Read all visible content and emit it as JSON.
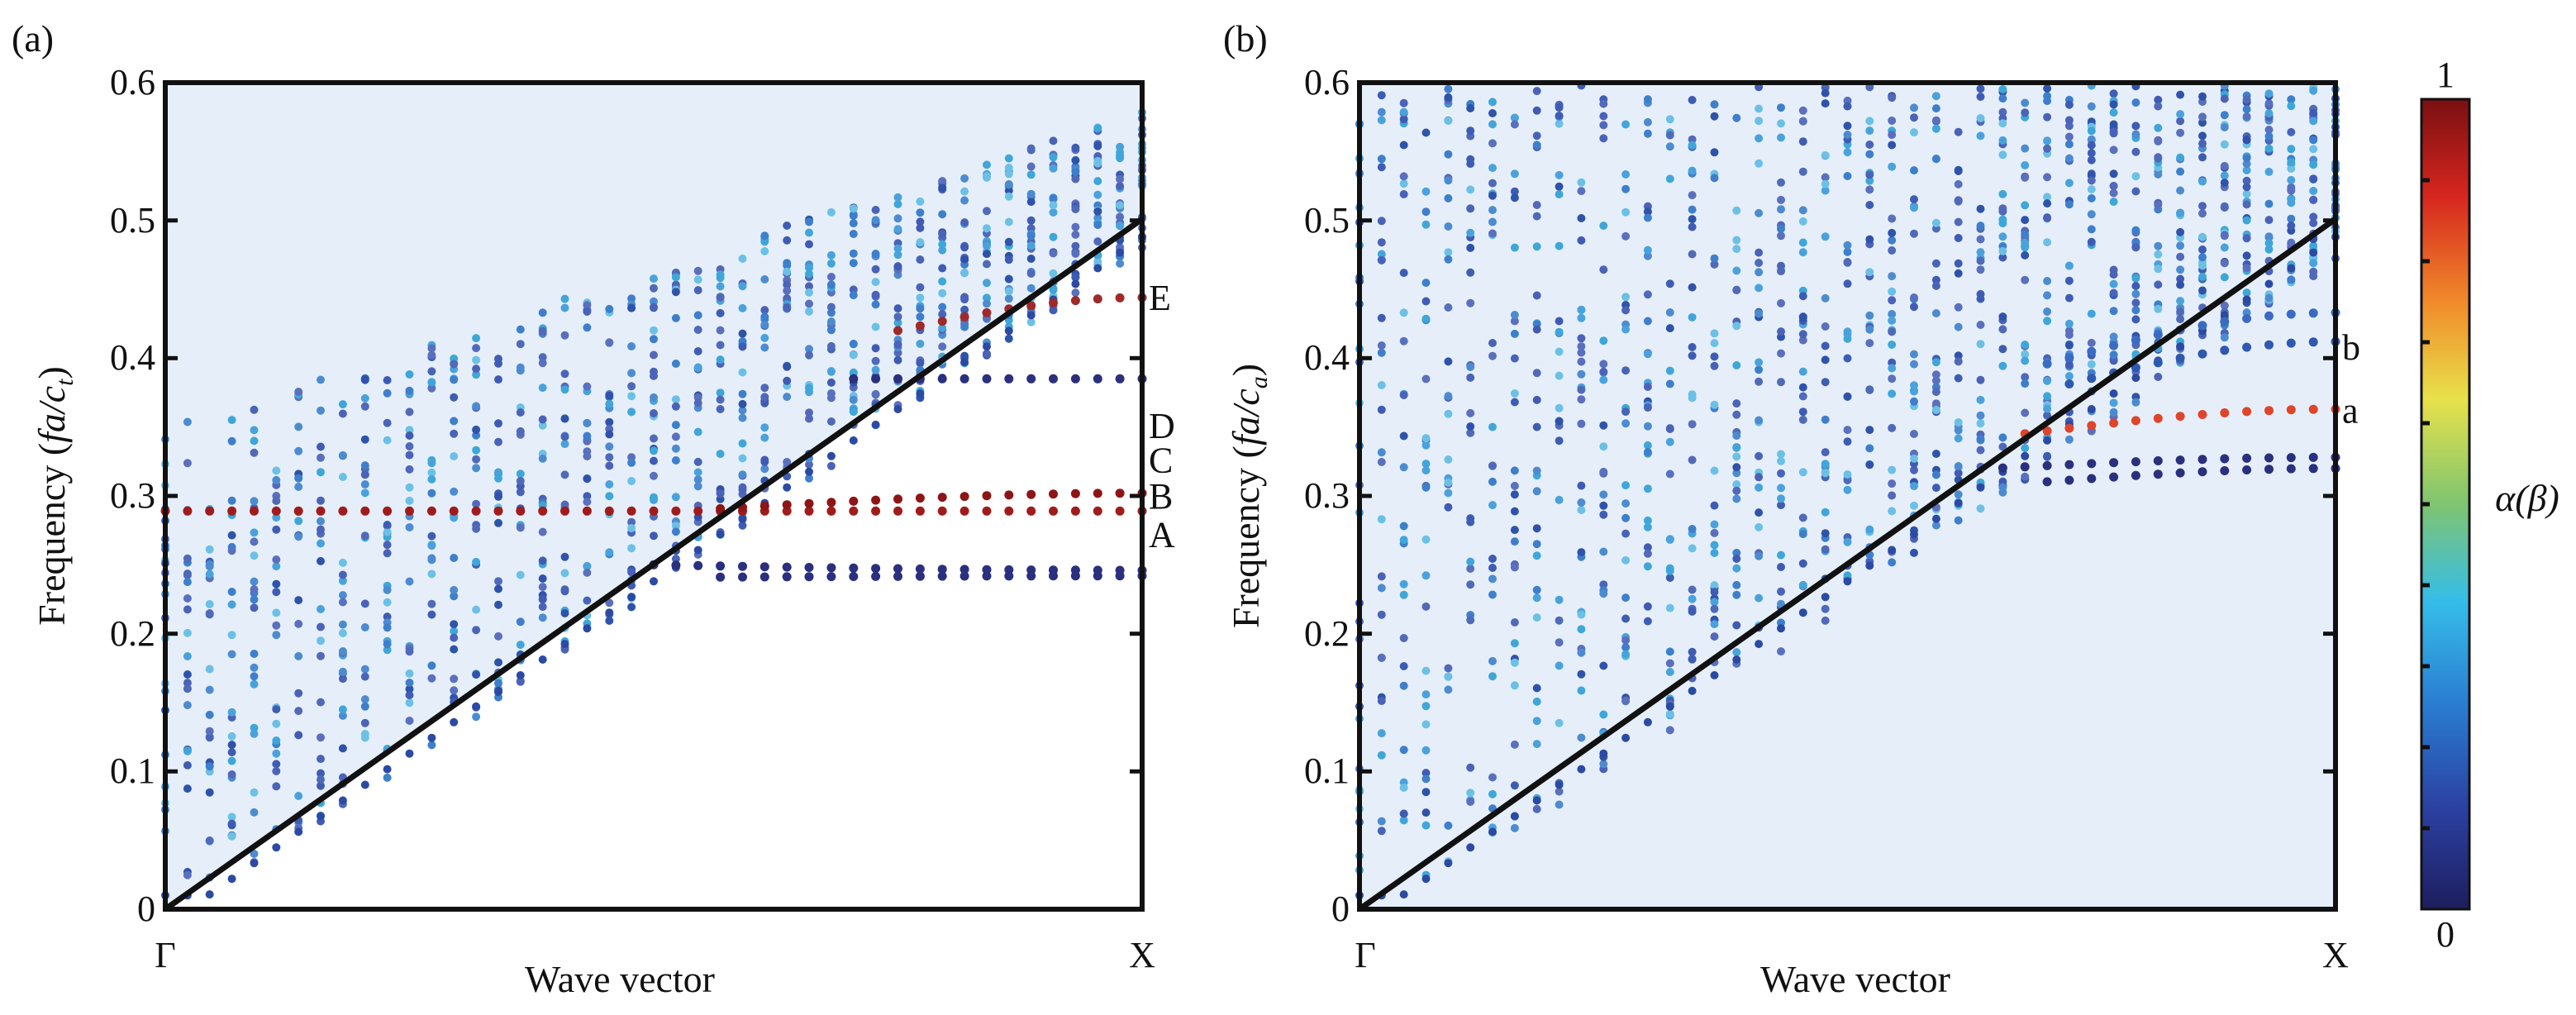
{
  "chart_data": [
    {
      "type": "scatter",
      "panel_label": "(a)",
      "xlabel": "Wave vector",
      "ylabel": {
        "prefix": "Frequency (",
        "italic": "fa/c",
        "sub": "t",
        "suffix": ")"
      },
      "ylim": [
        0,
        0.6
      ],
      "yticks": [
        "0",
        "0.1",
        "0.2",
        "0.3",
        "0.4",
        "0.5",
        "0.6"
      ],
      "xticks": [
        "Γ",
        "X"
      ],
      "light_line": {
        "from": [
          0,
          0
        ],
        "to": [
          1,
          0.5
        ]
      },
      "shaded_region": "above light line",
      "band_labels": [
        {
          "text": "E",
          "value": 0.444
        },
        {
          "text": "D",
          "value": 0.351
        },
        {
          "text": "C",
          "value": 0.326
        },
        {
          "text": "B",
          "value": 0.3
        },
        {
          "text": "A",
          "value": 0.272
        }
      ],
      "bands": [
        {
          "start": 0.289,
          "end": 0.289,
          "color": "#a01c1c",
          "xstart": 0.0
        },
        {
          "start": 0.29,
          "end": 0.302,
          "color": "#8e1515",
          "xstart": 0.55
        },
        {
          "start": 0.25,
          "end": 0.246,
          "color": "#2a2f7e",
          "xstart": 0.5
        },
        {
          "start": 0.241,
          "end": 0.242,
          "color": "#2a2f7e",
          "xstart": 0.55
        },
        {
          "start": 0.385,
          "end": 0.385,
          "color": "#2a2f7e",
          "xstart": 0.7
        },
        {
          "start": 0.42,
          "end": 0.444,
          "color": "#9e2a2a",
          "xstart": 0.75
        }
      ]
    },
    {
      "type": "scatter",
      "panel_label": "(b)",
      "xlabel": "Wave vector",
      "ylabel": {
        "prefix": "Frequency (",
        "italic": "fa/c",
        "sub": "a",
        "suffix": ")"
      },
      "ylim": [
        0,
        0.6
      ],
      "yticks": [
        "0",
        "0.1",
        "0.2",
        "0.3",
        "0.4",
        "0.5",
        "0.6"
      ],
      "xticks": [
        "Γ",
        "X"
      ],
      "light_line": {
        "from": [
          0,
          0
        ],
        "to": [
          1,
          0.5
        ]
      },
      "shaded_region": "full plot area",
      "band_labels": [
        {
          "text": "b",
          "value": 0.408
        },
        {
          "text": "a",
          "value": 0.362
        }
      ],
      "bands": [
        {
          "start": 0.345,
          "end": 0.363,
          "color": "#e0442a",
          "xstart": 0.68
        },
        {
          "start": 0.395,
          "end": 0.433,
          "color": "#3a6bc2",
          "xstart": 0.7
        },
        {
          "start": 0.38,
          "end": 0.412,
          "color": "#2f58b0",
          "xstart": 0.72
        },
        {
          "start": 0.32,
          "end": 0.328,
          "color": "#2a2f7e",
          "xstart": 0.65
        },
        {
          "start": 0.31,
          "end": 0.32,
          "color": "#2a2f7e",
          "xstart": 0.7
        }
      ]
    }
  ],
  "colorbar": {
    "label": "α(β)",
    "max_label": "1",
    "min_label": "0",
    "colors": [
      "#7a0f12",
      "#d7261f",
      "#f08a2a",
      "#e8e14a",
      "#7fc470",
      "#35bde8",
      "#2a7bd0",
      "#2b3fa0",
      "#1e1e5e"
    ]
  }
}
